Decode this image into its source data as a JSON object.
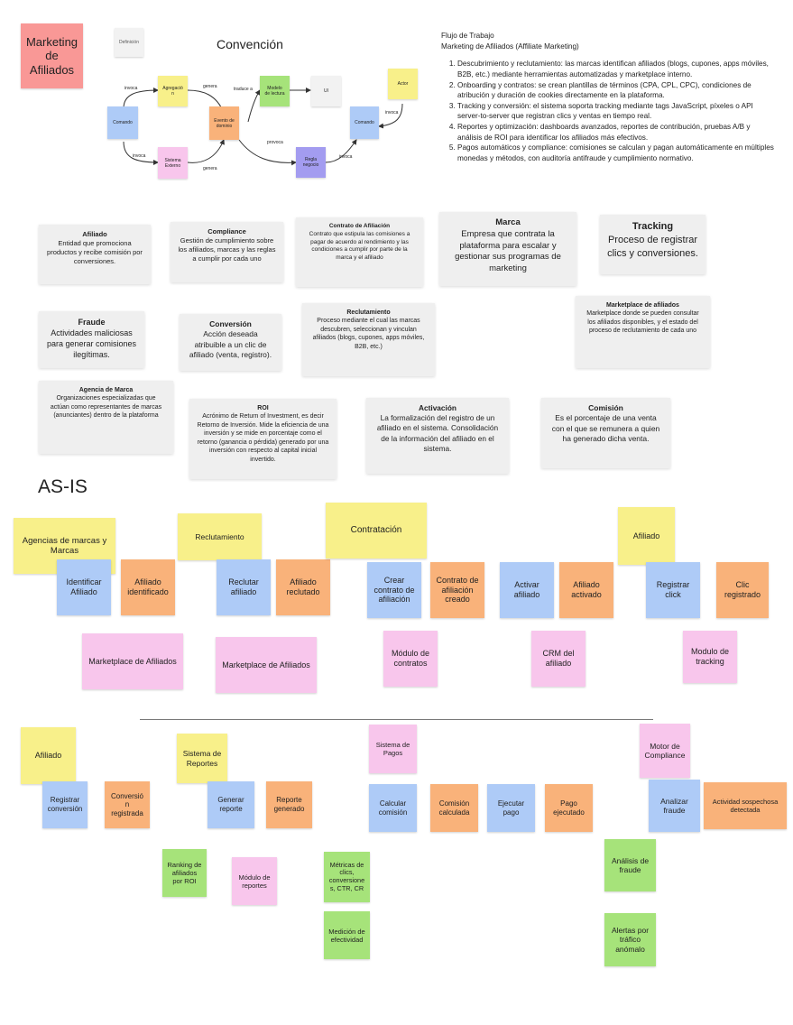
{
  "board_title": "Marketing de Afiliados",
  "legend": {
    "definicion": "Definición",
    "convencion_title": "Convención",
    "nodes": {
      "invoca1": "invoca",
      "agregacion": "Agregación",
      "genera1": "genera",
      "comando1": "Comando",
      "evento": "Evento de dominio",
      "traduce": "traduce a",
      "modelo": "Modelo de lectura",
      "ui": "UI",
      "actor": "Actor",
      "invoca2": "invoca",
      "comando2": "Comando",
      "invoca3": "invoca",
      "sistema": "Sistema Externo",
      "genera2": "genera",
      "provoca": "provoca",
      "regla": "Regla negocio",
      "invoca4": "invoca"
    }
  },
  "flow": {
    "title": "Flujo de Trabajo",
    "subtitle": "Marketing de Afiliados (Affiliate Marketing)",
    "steps": [
      "Descubrimiento y reclutamiento: las marcas identifican afiliados (blogs, cupones, apps móviles, B2B, etc.) mediante herramientas automatizadas y marketplace interno.",
      "Onboarding y contratos: se crean plantillas de términos (CPA, CPL, CPC), condiciones de atribución y duración de cookies directamente en la plataforma.",
      "Tracking y conversión: el sistema soporta tracking mediante tags JavaScript, píxeles o API server-to-server que registran clics y ventas en tiempo real.",
      "Reportes y optimización: dashboards avanzados, reportes de contribución, pruebas A/B y análisis de ROI para identificar los afiliados más efectivos.",
      "Pagos automáticos y compliance: comisiones se calculan y pagan automáticamente en múltiples monedas y métodos, con auditoría antifraude y cumplimiento normativo."
    ]
  },
  "glossary": [
    {
      "term": "Afiliado",
      "def": "Entidad que promociona productos y recibe comisión por conversiones."
    },
    {
      "term": "Compliance",
      "def": "Gestión de cumplimiento sobre los afiliados, marcas y las reglas a cumplir por cada uno"
    },
    {
      "term": "Contrato de Afiliación",
      "def": "Contrato que estipula las comisiones a pagar de acuerdo al rendimiento y las condiciones a cumplir por parte de la marca y el afiliado"
    },
    {
      "term": "Marca",
      "def": "Empresa que contrata la plataforma para escalar y gestionar sus programas de marketing"
    },
    {
      "term": "Tracking",
      "def": "Proceso de registrar clics y conversiones."
    },
    {
      "term": "Fraude",
      "def": "Actividades maliciosas para generar comisiones ilegítimas."
    },
    {
      "term": "Conversión",
      "def": "Acción deseada atribuible a un clic de afiliado (venta, registro)."
    },
    {
      "term": "Reclutamiento",
      "def": "Proceso mediante el cual las marcas descubren, seleccionan y vinculan afiliados (blogs, cupones, apps móviles, B2B, etc.)"
    },
    {
      "term": "Marketplace de afiliados",
      "def": "Marketplace donde se pueden consultar los afiliados disponibles, y el estado del proceso de reclutamiento de cada uno"
    },
    {
      "term": "Agencia de Marca",
      "def": "Organizaciones especializadas que actúan como representantes de marcas (anunciantes) dentro de la plataforma"
    },
    {
      "term": "ROI",
      "def": "Acrónimo de Return of Investment, es decir Retorno de Inversión. Mide la eficiencia de una inversión y se mide en porcentaje como el retorno (ganancia o pérdida) generado por una inversión con respecto al capital inicial invertido."
    },
    {
      "term": "Activación",
      "def": "La formalización del registro de un afiliado en el sistema. Consolidación de la información del afiliado en el sistema."
    },
    {
      "term": "Comisión",
      "def": "Es el porcentaje de una venta con el que se remunera a quien ha generado dicha venta."
    }
  ],
  "asis": {
    "title": "AS-IS",
    "row1": [
      "Agencias de marcas y Marcas",
      "Identificar Afiliado",
      "Afiliado identificado",
      "Reclutamiento",
      "Reclutar afiliado",
      "Afiliado reclutado",
      "Contratación",
      "Crear contrato de afiliación",
      "Contrato de afiliación creado",
      "Activar afiliado",
      "Afiliado activado",
      "Afiliado",
      "Registrar click",
      "Clic registrado",
      "Marketplace de Afiliados",
      "Marketplace de Afiliados",
      "Módulo de contratos",
      "CRM del afiliado",
      "Modulo de tracking"
    ],
    "row2": [
      "Afiliado",
      "Registrar conversión",
      "Conversión registrada",
      "Sistema de Reportes",
      "Generar reporte",
      "Reporte generado",
      "Sistema de Pagos",
      "Calcular comisión",
      "Comisión calculada",
      "Ejecutar pago",
      "Pago ejecutado",
      "Motor de Compliance",
      "Analizar fraude",
      "Actividad sospechosa detectada",
      "Ranking de afiliados por ROI",
      "Módulo de reportes",
      "Métricas de clics, conversiones, CTR, CR",
      "Medición de efectividad",
      "Análisis de fraude",
      "Alertas por tráfico anómalo"
    ]
  }
}
